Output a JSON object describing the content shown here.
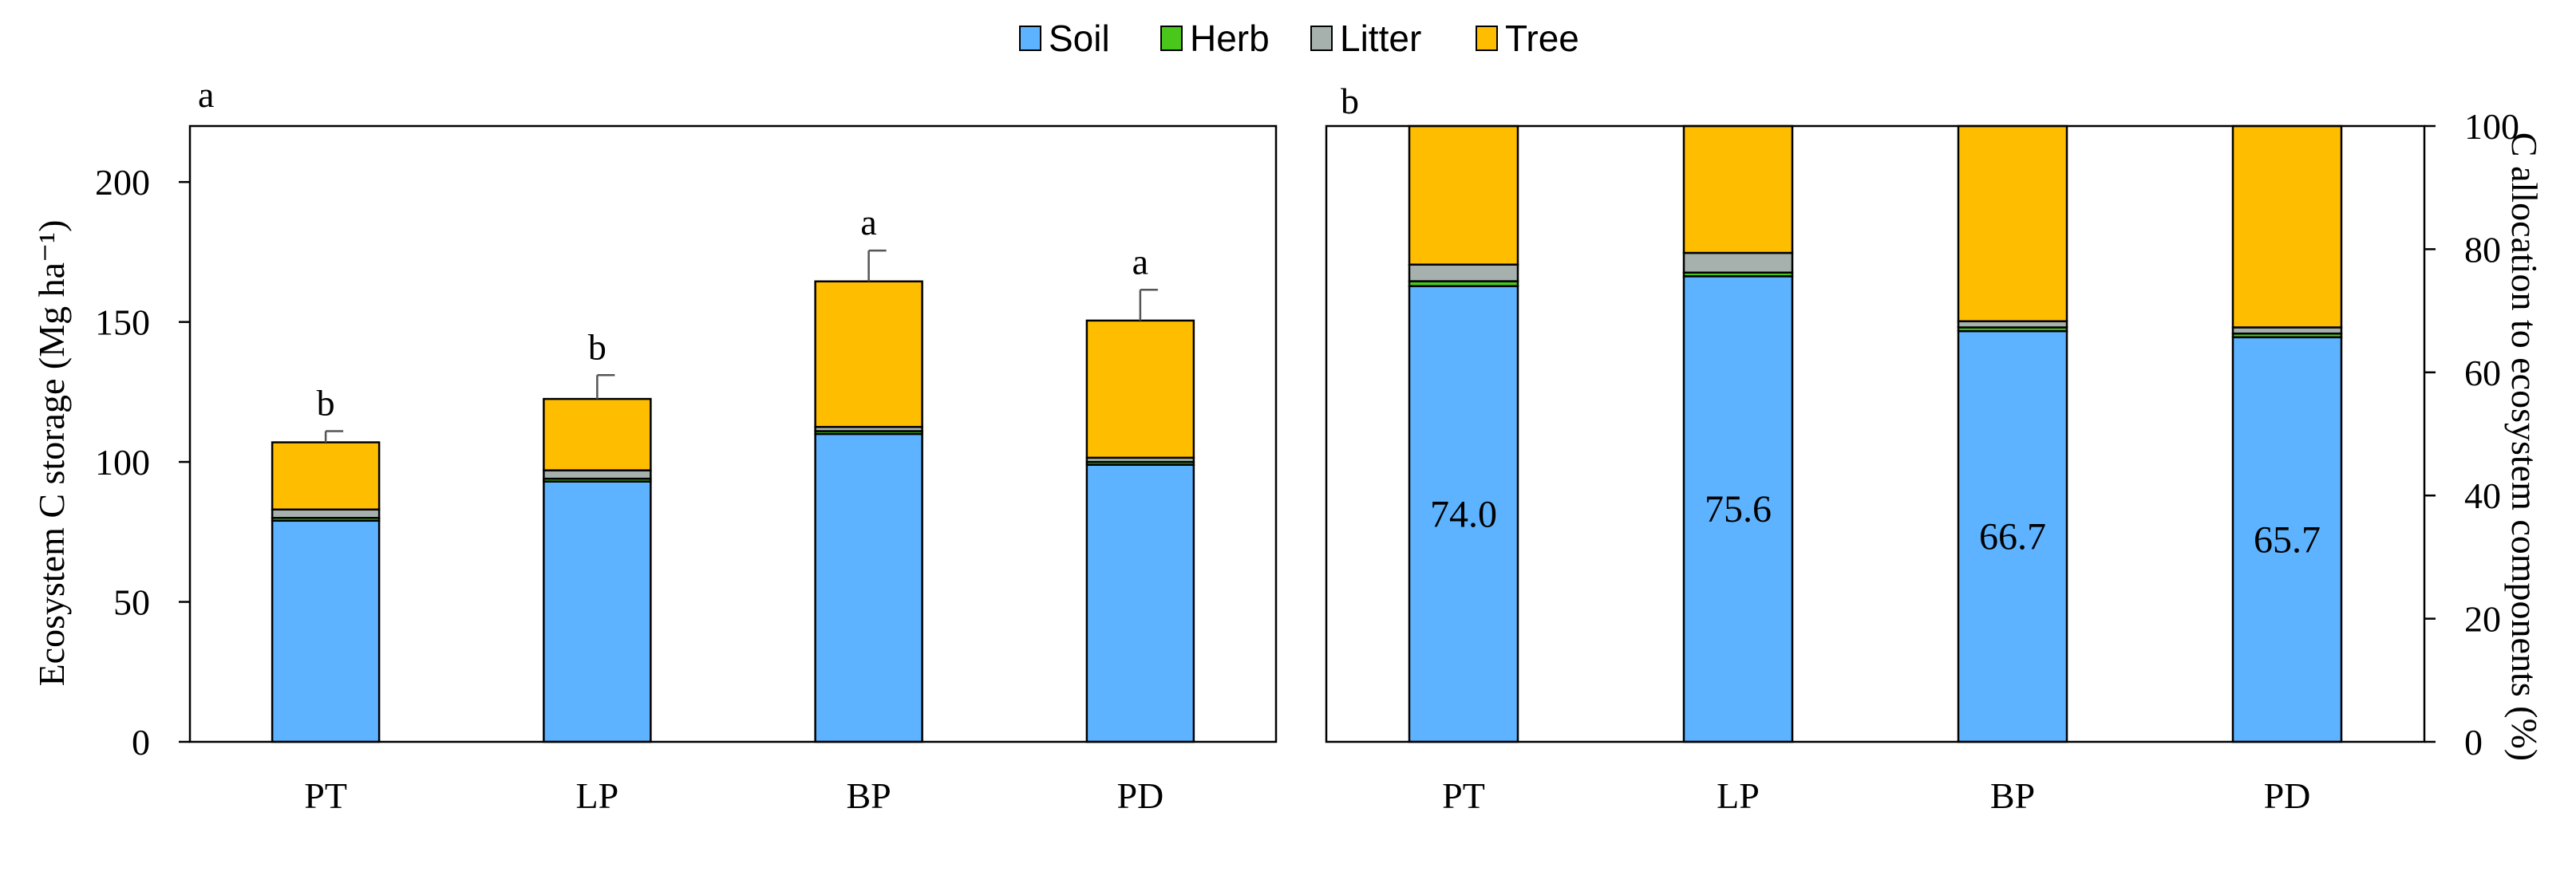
{
  "legend": {
    "items": [
      {
        "name": "Soil",
        "color": "#5DB3FF"
      },
      {
        "name": "Herb",
        "color": "#49C81B"
      },
      {
        "name": "Litter",
        "color": "#A6B1AE"
      },
      {
        "name": "Tree",
        "color": "#FFBD00"
      }
    ]
  },
  "chart_data": [
    {
      "type": "bar",
      "stacked": true,
      "panel_label": "a",
      "categories": [
        "PT",
        "LP",
        "BP",
        "PD"
      ],
      "ylabel": "Ecosystem C storage (Mg ha⁻¹)",
      "ylim": [
        0,
        220
      ],
      "yticks": [
        0,
        50,
        100,
        150,
        200
      ],
      "series": [
        {
          "name": "Soil",
          "values": [
            79,
            93,
            110,
            99
          ]
        },
        {
          "name": "Herb",
          "values": [
            1,
            1,
            1,
            1
          ]
        },
        {
          "name": "Litter",
          "values": [
            3,
            3,
            1.5,
            1.5
          ]
        },
        {
          "name": "Tree",
          "values": [
            24,
            25.5,
            52,
            49
          ]
        }
      ],
      "error_bars": [
        4,
        8.5,
        11,
        11
      ],
      "significance_letters": [
        "b",
        "b",
        "a",
        "a"
      ]
    },
    {
      "type": "bar",
      "stacked": true,
      "panel_label": "b",
      "categories": [
        "PT",
        "LP",
        "BP",
        "PD"
      ],
      "ylabel": "C allocation to ecosystem components (%)",
      "ylim": [
        0,
        100
      ],
      "yticks": [
        0,
        20,
        40,
        60,
        80,
        100
      ],
      "series": [
        {
          "name": "Soil",
          "values": [
            74.0,
            75.6,
            66.7,
            65.7
          ]
        },
        {
          "name": "Herb",
          "values": [
            0.8,
            0.6,
            0.6,
            0.6
          ]
        },
        {
          "name": "Litter",
          "values": [
            2.7,
            3.2,
            1.0,
            1.0
          ]
        },
        {
          "name": "Tree",
          "values": [
            22.5,
            20.6,
            31.7,
            32.7
          ]
        }
      ],
      "segment_labels": [
        "74.0",
        "75.6",
        "66.7",
        "65.7"
      ]
    }
  ]
}
